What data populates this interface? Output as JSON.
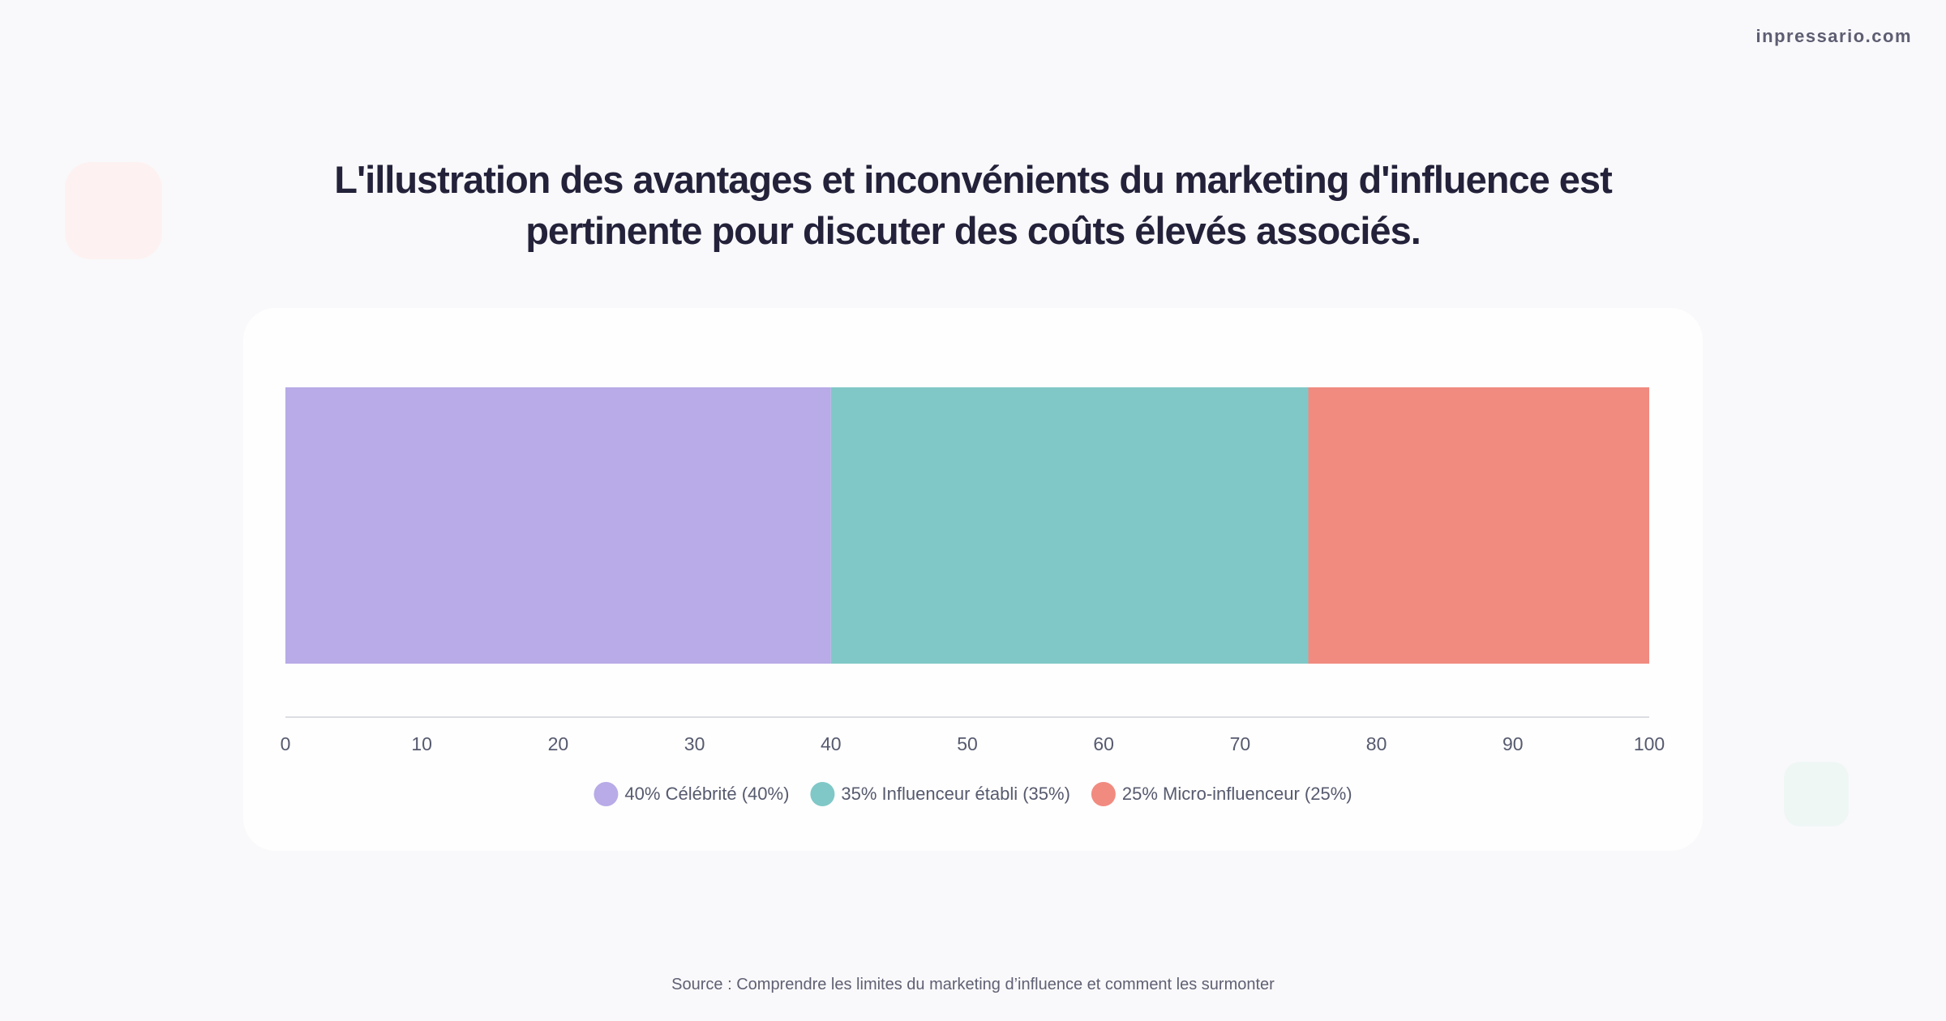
{
  "brand": "inpressario.com",
  "source": "Source : Comprendre les limites du marketing d’influence et comment les surmonter",
  "chart_data": {
    "type": "stacked-bar",
    "title": "L'illustration des avantages et inconvénients du marketing d'influence est pertinente pour discuter des coûts élevés associés.",
    "categories": [
      null
    ],
    "series": [
      {
        "name": "40% Célébrité (40%)",
        "color": "#b8abe7",
        "values": [
          40
        ]
      },
      {
        "name": "35% Influenceur établi (35%)",
        "color": "#80c8c7",
        "values": [
          35
        ]
      },
      {
        "name": "25% Micro-influenceur (25%)",
        "color": "#f18b80",
        "values": [
          25
        ]
      }
    ],
    "xlim": [
      0,
      100
    ],
    "xticks": [
      0,
      10,
      20,
      30,
      40,
      50,
      60,
      70,
      80,
      90,
      100
    ],
    "legend": "bottom"
  }
}
